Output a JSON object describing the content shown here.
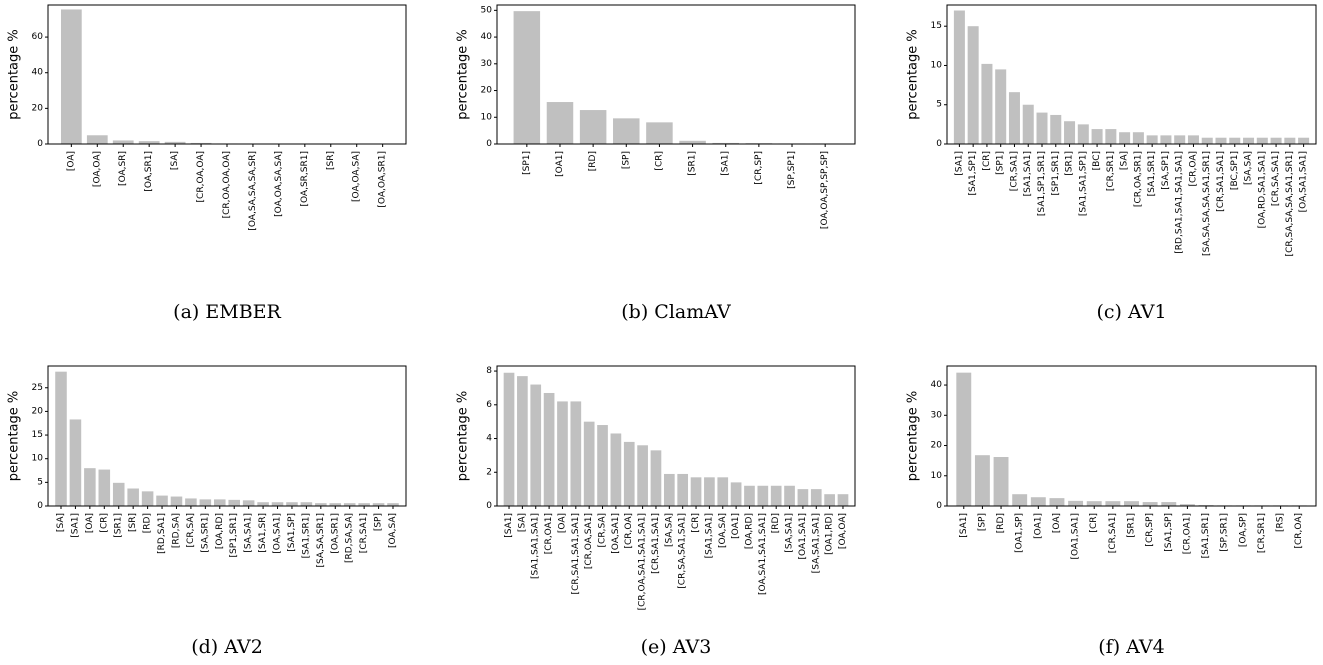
{
  "chart_data": [
    {
      "type": "bar",
      "caption": "(a) EMBER",
      "ylabel": "percentage %",
      "ylim": [
        0,
        78
      ],
      "yticks": [
        0,
        20,
        40,
        60
      ],
      "categories": [
        "[OA]",
        "[OA,OA]",
        "[OA,SR]",
        "[OA,SR1]",
        "[SA]",
        "[CR,OA,OA]",
        "[CR,OA,OA,OA]",
        "[OA,SA,SA,SA,SR]",
        "[OA,OA,SA,SA]",
        "[OA,SR,SR1]",
        "[SR]",
        "[OA,OA,SA]",
        "[OA,OA,SR1]"
      ],
      "values": [
        75.5,
        4.9,
        2.0,
        1.6,
        1.2,
        0.6,
        0.3,
        0.2,
        0.2,
        0.2,
        0.1,
        0.1,
        0.1
      ],
      "bar_color": "#c0c0c0"
    },
    {
      "type": "bar",
      "caption": "(b) ClamAV",
      "ylabel": "percentage %",
      "ylim": [
        0,
        52
      ],
      "yticks": [
        0,
        10,
        20,
        30,
        40,
        50
      ],
      "categories": [
        "[SP1]",
        "[OA1]",
        "[RD]",
        "[SP]",
        "[CR]",
        "[SR1]",
        "[SA1]",
        "[CR,SP]",
        "[SP,SP1]",
        "[OA,OA,SP,SP,SP]"
      ],
      "values": [
        49.7,
        15.7,
        12.7,
        9.6,
        8.1,
        1.2,
        0.4,
        0.3,
        0.2,
        0.2
      ],
      "bar_color": "#c0c0c0"
    },
    {
      "type": "bar",
      "caption": "(c) AV1",
      "ylabel": "percentage %",
      "ylim": [
        0,
        17.7
      ],
      "yticks": [
        0,
        5,
        10,
        15
      ],
      "categories": [
        "[SA1]",
        "[SA1,SP1]",
        "[CR]",
        "[SP1]",
        "[CR,SA1]",
        "[SA1,SA1]",
        "[SA1,SP1,SR1]",
        "[SP1,SR1]",
        "[SR1]",
        "[SA1,SA1,SP1]",
        "[BC]",
        "[CR,SR1]",
        "[SA]",
        "[CR,OA,SR1]",
        "[SA1,SR1]",
        "[SA,SP1]",
        "[RD,SA1,SA1,SA1,SA1]",
        "[CR,OA]",
        "[SA,SA,SA,SA,SA1,SR1]",
        "[CR,SA1,SA1]",
        "[BC,SP1]",
        "[SA,SA]",
        "[OA,RD,SA1,SA1]",
        "[CR,SA,SA1]",
        "[CR,SA,SA,SA,SA1,SR1]",
        "[OA,SA1,SA1]"
      ],
      "values": [
        17.0,
        15.0,
        10.2,
        9.5,
        6.6,
        5.0,
        4.0,
        3.7,
        2.9,
        2.5,
        1.9,
        1.9,
        1.5,
        1.5,
        1.1,
        1.1,
        1.1,
        1.1,
        0.8,
        0.8,
        0.8,
        0.8,
        0.8,
        0.8,
        0.8,
        0.8
      ],
      "bar_color": "#c0c0c0"
    },
    {
      "type": "bar",
      "caption": "(d) AV2",
      "ylabel": "percentage %",
      "ylim": [
        0,
        29.6
      ],
      "yticks": [
        0,
        5,
        10,
        15,
        20,
        25
      ],
      "categories": [
        "[SA]",
        "[SA1]",
        "[OA]",
        "[CR]",
        "[SR1]",
        "[SR]",
        "[RD]",
        "[RD,SA1]",
        "[RD,SA]",
        "[CR,SA]",
        "[SA,SR1]",
        "[OA,RD]",
        "[SP1,SR1]",
        "[SA,SA1]",
        "[SA1,SR]",
        "[OA,SA1]",
        "[SA1,SP]",
        "[SA1,SR1]",
        "[SA,SA,SR1]",
        "[OA,SR1]",
        "[RD,SA,SA]",
        "[CR,SA1]",
        "[SP]",
        "[OA,SA]"
      ],
      "values": [
        28.4,
        18.3,
        8.0,
        7.7,
        4.9,
        3.7,
        3.1,
        2.2,
        2.0,
        1.6,
        1.4,
        1.4,
        1.3,
        1.2,
        0.8,
        0.8,
        0.8,
        0.8,
        0.6,
        0.6,
        0.6,
        0.6,
        0.6,
        0.6
      ],
      "bar_color": "#c0c0c0"
    },
    {
      "type": "bar",
      "caption": "(e) AV3",
      "ylabel": "percentage %",
      "ylim": [
        0,
        8.3
      ],
      "yticks": [
        0,
        2,
        4,
        6,
        8
      ],
      "categories": [
        "[SA1]",
        "[SA]",
        "[SA1,SA1,SA1]",
        "[CR,OA1]",
        "[OA]",
        "[CR,SA1,SA1,SA1]",
        "[CR,OA,SA1]",
        "[CR,SA]",
        "[OA,SA1]",
        "[CR,OA]",
        "[CR,OA,SA1,SA1,SA1]",
        "[CR,SA1,SA1]",
        "[SA,SA]",
        "[CR,SA,SA1,SA1]",
        "[CR]",
        "[SA1,SA1]",
        "[OA,SA]",
        "[OA1]",
        "[OA,RD]",
        "[OA,SA1,SA1,SA1]",
        "[RD]",
        "[SA,SA1]",
        "[OA1,SA1]",
        "[SA,SA1,SA1]",
        "[OA1,RD]",
        "[OA,OA]"
      ],
      "values": [
        7.9,
        7.7,
        7.2,
        6.7,
        6.2,
        6.2,
        5.0,
        4.8,
        4.3,
        3.8,
        3.6,
        3.3,
        1.9,
        1.9,
        1.7,
        1.7,
        1.7,
        1.4,
        1.2,
        1.2,
        1.2,
        1.2,
        1.0,
        1.0,
        0.7,
        0.7
      ],
      "bar_color": "#c0c0c0"
    },
    {
      "type": "bar",
      "caption": "(f) AV4",
      "ylabel": "percentage %",
      "ylim": [
        0,
        46.3
      ],
      "yticks": [
        0,
        10,
        20,
        30,
        40
      ],
      "categories": [
        "[SA1]",
        "[SP]",
        "[RD]",
        "[OA1,SP]",
        "[OA1]",
        "[OA]",
        "[OA1,SA1]",
        "[CR]",
        "[CR,SA1]",
        "[SR1]",
        "[CR,SP]",
        "[SA1,SP]",
        "[CR,OA1]",
        "[SA1,SR1]",
        "[SP,SR1]",
        "[OA,SP]",
        "[CR,SR1]",
        "[RS]",
        "[CR,OA]"
      ],
      "values": [
        44.1,
        16.8,
        16.2,
        3.9,
        2.9,
        2.6,
        1.7,
        1.6,
        1.6,
        1.6,
        1.3,
        1.3,
        0.6,
        0.3,
        0.2,
        0.2,
        0.2,
        0.2,
        0.2
      ],
      "bar_color": "#c0c0c0"
    }
  ]
}
